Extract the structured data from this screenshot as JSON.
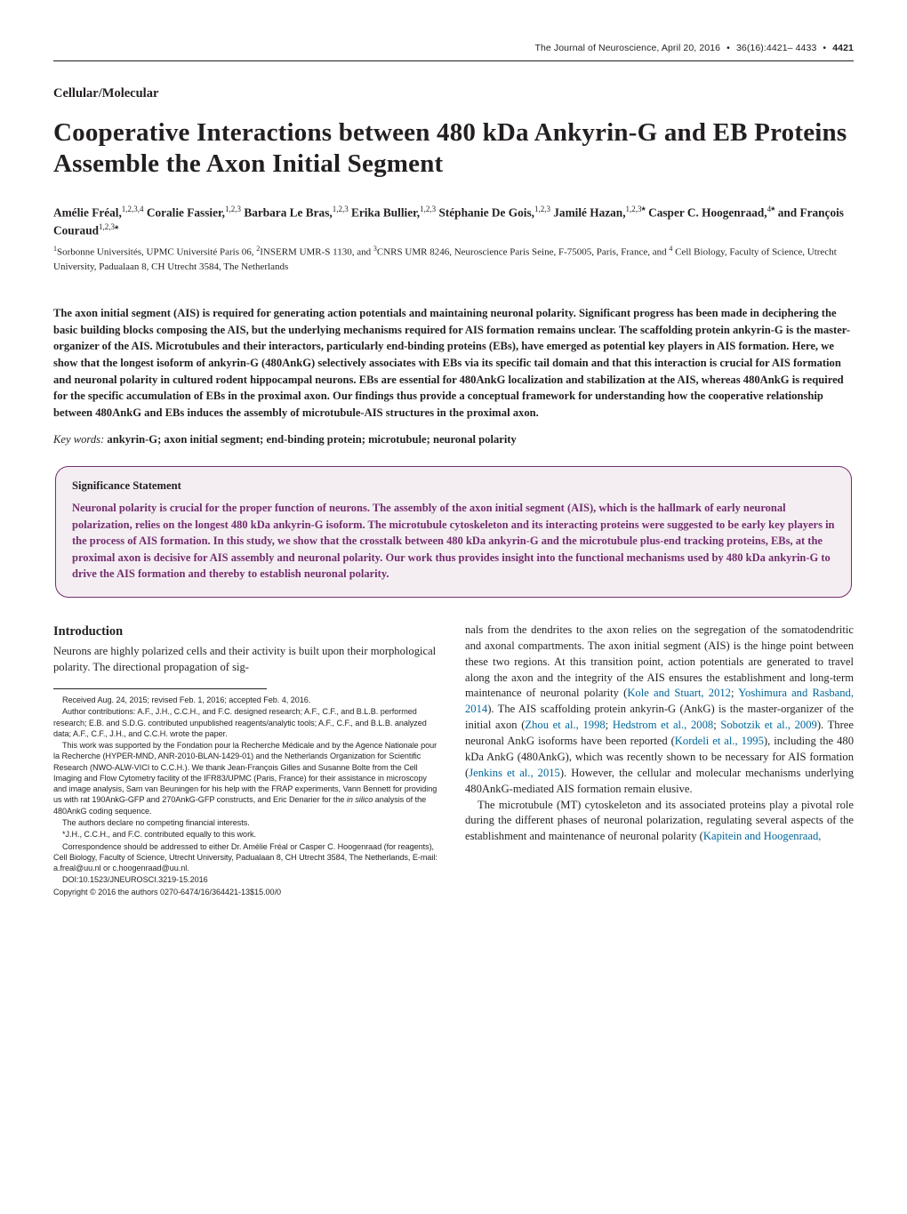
{
  "running_head": {
    "journal": "The Journal of Neuroscience",
    "date": "April 20, 2016",
    "vol_issue": "36(16):4421– 4433",
    "page": "4421"
  },
  "section_label": "Cellular/Molecular",
  "title": "Cooperative Interactions between 480 kDa Ankyrin-G and EB Proteins Assemble the Axon Initial Segment",
  "authors_html": "Amélie Fréal,<sup>1,2,3,4</sup> Coralie Fassier,<sup>1,2,3</sup> Barbara Le Bras,<sup>1,2,3</sup> Erika Bullier,<sup>1,2,3</sup> Stéphanie De Gois,<sup>1,2,3</sup> Jamilé Hazan,<sup>1,2,3</sup><span class='star-icon'>*</span> Casper C. Hoogenraad,<sup>4</sup><span class='star-icon'>*</span> and François Couraud<sup>1,2,3</sup><span class='star-icon'>*</span>",
  "affiliations_html": "<sup>1</sup>Sorbonne Universités, UPMC Université Paris 06, <sup>2</sup>INSERM UMR-S 1130, and <sup>3</sup>CNRS UMR 8246, Neuroscience Paris Seine, F-75005, Paris, France, and <sup>4</sup> Cell Biology, Faculty of Science, Utrecht University, Padualaan 8, CH Utrecht 3584, The Netherlands",
  "abstract": "The axon initial segment (AIS) is required for generating action potentials and maintaining neuronal polarity. Significant progress has been made in deciphering the basic building blocks composing the AIS, but the underlying mechanisms required for AIS formation remains unclear. The scaffolding protein ankyrin-G is the master-organizer of the AIS. Microtubules and their interactors, particularly end-binding proteins (EBs), have emerged as potential key players in AIS formation. Here, we show that the longest isoform of ankyrin-G (480AnkG) selectively associates with EBs via its specific tail domain and that this interaction is crucial for AIS formation and neuronal polarity in cultured rodent hippocampal neurons. EBs are essential for 480AnkG localization and stabilization at the AIS, whereas 480AnkG is required for the specific accumulation of EBs in the proximal axon. Our findings thus provide a conceptual framework for understanding how the cooperative relationship between 480AnkG and EBs induces the assembly of microtubule-AIS structures in the proximal axon.",
  "keywords_label": "Key words:",
  "keywords_text": "ankyrin-G; axon initial segment; end-binding protein; microtubule; neuronal polarity",
  "significance": {
    "heading": "Significance Statement",
    "body": "Neuronal polarity is crucial for the proper function of neurons. The assembly of the axon initial segment (AIS), which is the hallmark of early neuronal polarization, relies on the longest 480 kDa ankyrin-G isoform. The microtubule cytoskeleton and its interacting proteins were suggested to be early key players in the process of AIS formation. In this study, we show that the crosstalk between 480 kDa ankyrin-G and the microtubule plus-end tracking proteins, EBs, at the proximal axon is decisive for AIS assembly and neuronal polarity. Our work thus provides insight into the functional mechanisms used by 480 kDa ankyrin-G to drive the AIS formation and thereby to establish neuronal polarity."
  },
  "left_col": {
    "intro_heading": "Introduction",
    "intro_body": "Neurons are highly polarized cells and their activity is built upon their morphological polarity. The directional propagation of sig-",
    "fn_received": "Received Aug. 24, 2015; revised Feb. 1, 2016; accepted Feb. 4, 2016.",
    "fn_contrib": "Author contributions: A.F., J.H., C.C.H., and F.C. designed research; A.F., C.F., and B.L.B. performed research; E.B. and S.D.G. contributed unpublished reagents/analytic tools; A.F., C.F., and B.L.B. analyzed data; A.F., C.F., J.H., and C.C.H. wrote the paper.",
    "fn_funding_html": "This work was supported by the Fondation pour la Recherche Médicale and by the Agence Nationale pour la Recherche (HYPER-MND, ANR-2010-BLAN-1429-01) and the Netherlands Organization for Scientific Research (NWO-ALW-VICI to C.C.H.). We thank Jean-François Gilles and Susanne Bolte from the Cell Imaging and Flow Cytometry facility of the IFR83/UPMC (Paris, France) for their assistance in microscopy and image analysis, Sam van Beuningen for his help with the FRAP experiments, Vann Bennett for providing us with rat 190AnkG-GFP and 270AnkG-GFP constructs, and Eric Denarier for the <i>in silico</i> analysis of the 480AnkG coding sequence.",
    "fn_conflict": "The authors declare no competing financial interests.",
    "fn_equal": "*J.H., C.C.H., and F.C. contributed equally to this work.",
    "fn_corr": "Correspondence should be addressed to either Dr. Amélie Fréal or Casper C. Hoogenraad (for reagents), Cell Biology, Faculty of Science, Utrecht University, Padualaan 8, CH Utrecht 3584, The Netherlands, E-mail: a.freal@uu.nl or c.hoogenraad@uu.nl.",
    "fn_doi": "DOI:10.1523/JNEUROSCI.3219-15.2016",
    "fn_copyright": "Copyright © 2016 the authors     0270-6474/16/364421-13$15.00/0"
  },
  "right_col": {
    "p1_html": "nals from the dendrites to the axon relies on the segregation of the somatodendritic and axonal compartments. The axon initial segment (AIS) is the hinge point between these two regions. At this transition point, action potentials are generated to travel along the axon and the integrity of the AIS ensures the establishment and long-term maintenance of neuronal polarity (<span class='cite-link'>Kole and Stuart, 2012</span>; <span class='cite-link'>Yoshimura and Rasband, 2014</span>). The AIS scaffolding protein ankyrin-G (AnkG) is the master-organizer of the initial axon (<span class='cite-link'>Zhou et al., 1998</span>; <span class='cite-link'>Hedstrom et al., 2008</span>; <span class='cite-link'>Sobotzik et al., 2009</span>). Three neuronal AnkG isoforms have been reported (<span class='cite-link'>Kordeli et al., 1995</span>), including the 480 kDa AnkG (480AnkG), which was recently shown to be necessary for AIS formation (<span class='cite-link'>Jenkins et al., 2015</span>). However, the cellular and molecular mechanisms underlying 480AnkG-mediated AIS formation remain elusive.",
    "p2_html": "The microtubule (MT) cytoskeleton and its associated proteins play a pivotal role during the different phases of neuronal polarization, regulating several aspects of the establishment and maintenance of neuronal polarity (<span class='cite-link'>Kapitein and Hoogenraad,</span>"
  },
  "colors": {
    "sig_border": "#732e6d",
    "sig_bg": "#f4eef3",
    "sig_text": "#732e6d",
    "cite_link": "#006699",
    "body_text": "#231f20",
    "page_bg": "#ffffff"
  }
}
